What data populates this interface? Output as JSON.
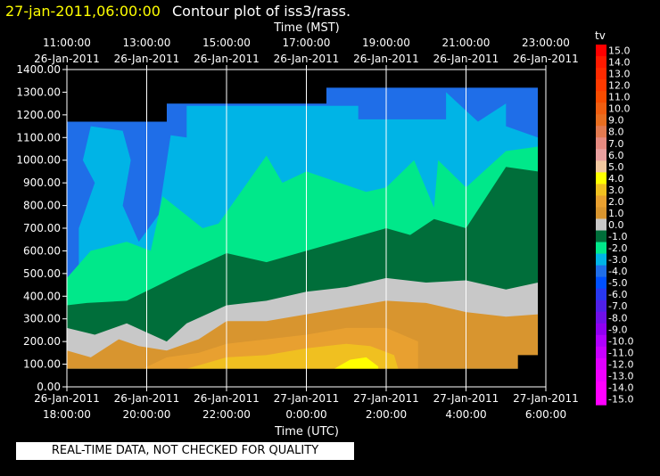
{
  "header": {
    "timestamp": "27-jan-2011,06:00:00",
    "title": "Contour plot of iss3/rass."
  },
  "footer": {
    "notice": "REAL-TIME DATA, NOT CHECKED FOR QUALITY"
  },
  "colors": {
    "background": "#000000",
    "timestamp": "#ffff00",
    "text": "#ffffff",
    "grid": "#ffffff"
  },
  "chart_data": {
    "type": "heatmap",
    "title": "Contour plot of iss3/rass.",
    "xlabel_top": "Time (MST)",
    "xlabel": "Time (UTC)",
    "ylabel": "",
    "legend_title": "tv",
    "legend_position": "right",
    "grid": true,
    "xlim": [
      0,
      12
    ],
    "ylim": [
      0,
      1400
    ],
    "yticks": [
      0,
      100,
      200,
      300,
      400,
      500,
      600,
      700,
      800,
      900,
      1000,
      1100,
      1200,
      1300,
      1400
    ],
    "ytick_labels": [
      "0.00",
      "100.00",
      "200.00",
      "300.00",
      "400.00",
      "500.00",
      "600.00",
      "700.00",
      "800.00",
      "900.00",
      "1000.00",
      "1100.00",
      "1200.00",
      "1300.00",
      "1400.00"
    ],
    "xticks_bottom": [
      {
        "x": 0,
        "date": "26-Jan-2011",
        "time": "18:00:00"
      },
      {
        "x": 2,
        "date": "26-Jan-2011",
        "time": "20:00:00"
      },
      {
        "x": 4,
        "date": "26-Jan-2011",
        "time": "22:00:00"
      },
      {
        "x": 6,
        "date": "27-Jan-2011",
        "time": "0:00:00"
      },
      {
        "x": 8,
        "date": "27-Jan-2011",
        "time": "2:00:00"
      },
      {
        "x": 10,
        "date": "27-Jan-2011",
        "time": "4:00:00"
      },
      {
        "x": 12,
        "date": "27-Jan-2011",
        "time": "6:00:00"
      }
    ],
    "xticks_top": [
      {
        "x": 0,
        "time": "11:00:00",
        "date": "26-Jan-2011"
      },
      {
        "x": 2,
        "time": "13:00:00",
        "date": "26-Jan-2011"
      },
      {
        "x": 4,
        "time": "15:00:00",
        "date": "26-Jan-2011"
      },
      {
        "x": 6,
        "time": "17:00:00",
        "date": "26-Jan-2011"
      },
      {
        "x": 8,
        "time": "19:00:00",
        "date": "26-Jan-2011"
      },
      {
        "x": 10,
        "time": "21:00:00",
        "date": "26-Jan-2011"
      },
      {
        "x": 12,
        "time": "23:00:00",
        "date": "26-Jan-2011"
      }
    ],
    "colorbar": [
      {
        "label": "15.0",
        "color": "#ff0000"
      },
      {
        "label": "14.0",
        "color": "#ff1a00"
      },
      {
        "label": "13.0",
        "color": "#ff2a00"
      },
      {
        "label": "12.0",
        "color": "#ff3a00"
      },
      {
        "label": "11.0",
        "color": "#f84c00"
      },
      {
        "label": "10.0",
        "color": "#f05e10"
      },
      {
        "label": "9.0",
        "color": "#e86e20"
      },
      {
        "label": "8.0",
        "color": "#e27a50"
      },
      {
        "label": "7.0",
        "color": "#e68a80"
      },
      {
        "label": "6.0",
        "color": "#eaa0a0"
      },
      {
        "label": "5.0",
        "color": "#f2c8a0"
      },
      {
        "label": "4.0",
        "color": "#ffff00"
      },
      {
        "label": "3.0",
        "color": "#f0c020"
      },
      {
        "label": "2.0",
        "color": "#e8a030"
      },
      {
        "label": "1.0",
        "color": "#d8952f"
      },
      {
        "label": "0.0",
        "color": "#c8c8c8"
      },
      {
        "label": "-1.0",
        "color": "#006e3a"
      },
      {
        "label": "-2.0",
        "color": "#00e88a"
      },
      {
        "label": "-3.0",
        "color": "#00b4e6"
      },
      {
        "label": "-4.0",
        "color": "#1f6ee8"
      },
      {
        "label": "-5.0",
        "color": "#0050ff"
      },
      {
        "label": "-6.0",
        "color": "#2838f0"
      },
      {
        "label": "-7.0",
        "color": "#5020e8"
      },
      {
        "label": "-8.0",
        "color": "#7010e8"
      },
      {
        "label": "-9.0",
        "color": "#9000f0"
      },
      {
        "label": "-10.0",
        "color": "#b000ff"
      },
      {
        "label": "-11.0",
        "color": "#c800ff"
      },
      {
        "label": "-12.0",
        "color": "#e000ff"
      },
      {
        "label": "-13.0",
        "color": "#f000ff"
      },
      {
        "label": "-14.0",
        "color": "#ff00ff"
      },
      {
        "label": "-15.0",
        "color": "#ff00ff"
      }
    ],
    "regions": [
      {
        "name": "band-blue",
        "color": "#1f6ee8",
        "points": [
          [
            0,
            1170
          ],
          [
            2.5,
            1170
          ],
          [
            2.5,
            1250
          ],
          [
            6.5,
            1250
          ],
          [
            6.5,
            1320
          ],
          [
            11.8,
            1320
          ],
          [
            11.8,
            120
          ],
          [
            0,
            120
          ]
        ]
      },
      {
        "name": "band-light-blue",
        "color": "#00b4e6",
        "points": [
          [
            0.3,
            80
          ],
          [
            0.3,
            480
          ],
          [
            0.3,
            700
          ],
          [
            0.7,
            900
          ],
          [
            0.4,
            1000
          ],
          [
            0.6,
            1150
          ],
          [
            1.4,
            1130
          ],
          [
            1.6,
            1000
          ],
          [
            1.4,
            800
          ],
          [
            1.8,
            640
          ],
          [
            2.3,
            760
          ],
          [
            2.6,
            1110
          ],
          [
            3.0,
            1100
          ],
          [
            3.0,
            1240
          ],
          [
            7.3,
            1240
          ],
          [
            7.3,
            1180
          ],
          [
            9.5,
            1180
          ],
          [
            9.5,
            1300
          ],
          [
            10.3,
            1170
          ],
          [
            11.0,
            1250
          ],
          [
            11.0,
            1150
          ],
          [
            11.8,
            1100
          ],
          [
            11.8,
            80
          ]
        ]
      },
      {
        "name": "band-teal",
        "color": "#00e88a",
        "points": [
          [
            0,
            80
          ],
          [
            0,
            480
          ],
          [
            0.6,
            600
          ],
          [
            1.5,
            640
          ],
          [
            2.1,
            600
          ],
          [
            2.4,
            840
          ],
          [
            3.4,
            700
          ],
          [
            3.8,
            720
          ],
          [
            5.0,
            1020
          ],
          [
            5.4,
            900
          ],
          [
            6.0,
            950
          ],
          [
            7.5,
            860
          ],
          [
            8.0,
            880
          ],
          [
            8.7,
            1000
          ],
          [
            9.2,
            790
          ],
          [
            9.3,
            1000
          ],
          [
            10.0,
            880
          ],
          [
            11.0,
            1040
          ],
          [
            11.8,
            1060
          ],
          [
            11.8,
            80
          ]
        ]
      },
      {
        "name": "band-dark-green",
        "color": "#006e3a",
        "points": [
          [
            0,
            80
          ],
          [
            0,
            360
          ],
          [
            0.5,
            370
          ],
          [
            1.5,
            380
          ],
          [
            2.2,
            440
          ],
          [
            3.0,
            510
          ],
          [
            4.0,
            590
          ],
          [
            5.0,
            550
          ],
          [
            6.0,
            600
          ],
          [
            7.0,
            650
          ],
          [
            8.0,
            700
          ],
          [
            8.6,
            670
          ],
          [
            9.2,
            740
          ],
          [
            10.0,
            700
          ],
          [
            11.0,
            970
          ],
          [
            11.8,
            950
          ],
          [
            11.8,
            80
          ]
        ]
      },
      {
        "name": "band-gray",
        "color": "#c8c8c8",
        "points": [
          [
            0,
            80
          ],
          [
            0,
            260
          ],
          [
            0.7,
            230
          ],
          [
            1.5,
            280
          ],
          [
            2.5,
            200
          ],
          [
            3.0,
            280
          ],
          [
            4.0,
            360
          ],
          [
            5.0,
            380
          ],
          [
            6.0,
            420
          ],
          [
            7.0,
            440
          ],
          [
            8.0,
            480
          ],
          [
            9.0,
            460
          ],
          [
            10.0,
            470
          ],
          [
            11.0,
            430
          ],
          [
            11.8,
            460
          ],
          [
            11.8,
            80
          ]
        ]
      },
      {
        "name": "band-orange",
        "color": "#d8952f",
        "points": [
          [
            0,
            80
          ],
          [
            0,
            160
          ],
          [
            0.6,
            130
          ],
          [
            1.3,
            210
          ],
          [
            1.8,
            180
          ],
          [
            2.5,
            160
          ],
          [
            3.3,
            210
          ],
          [
            4.0,
            290
          ],
          [
            5.0,
            290
          ],
          [
            6.0,
            320
          ],
          [
            7.0,
            350
          ],
          [
            8.0,
            380
          ],
          [
            9.0,
            370
          ],
          [
            10.0,
            330
          ],
          [
            11.0,
            310
          ],
          [
            11.8,
            320
          ],
          [
            11.8,
            80
          ]
        ]
      },
      {
        "name": "band-gold",
        "color": "#e8a030",
        "points": [
          [
            1.9,
            80
          ],
          [
            2.5,
            130
          ],
          [
            3.3,
            150
          ],
          [
            4.0,
            190
          ],
          [
            5.0,
            210
          ],
          [
            6.0,
            230
          ],
          [
            7.0,
            260
          ],
          [
            8.0,
            260
          ],
          [
            8.8,
            200
          ],
          [
            8.8,
            80
          ]
        ]
      },
      {
        "name": "band-bright-gold",
        "color": "#f0c020",
        "points": [
          [
            3.0,
            80
          ],
          [
            4.0,
            130
          ],
          [
            5.0,
            140
          ],
          [
            6.0,
            170
          ],
          [
            7.0,
            190
          ],
          [
            7.6,
            180
          ],
          [
            8.2,
            140
          ],
          [
            8.3,
            80
          ]
        ]
      },
      {
        "name": "band-yellow",
        "color": "#ffff00",
        "points": [
          [
            6.7,
            80
          ],
          [
            7.1,
            120
          ],
          [
            7.5,
            130
          ],
          [
            7.8,
            90
          ],
          [
            7.8,
            80
          ]
        ]
      }
    ],
    "masks": [
      {
        "name": "no-data-top-left",
        "points": [
          [
            0,
            1400
          ],
          [
            2.5,
            1400
          ],
          [
            2.5,
            1170
          ],
          [
            0,
            1170
          ]
        ]
      },
      {
        "name": "no-data-top-mid",
        "points": [
          [
            2.5,
            1400
          ],
          [
            6.5,
            1400
          ],
          [
            6.5,
            1250
          ],
          [
            2.5,
            1250
          ]
        ]
      },
      {
        "name": "no-data-top-right",
        "points": [
          [
            11.8,
            1400
          ],
          [
            12,
            1400
          ],
          [
            12,
            80
          ],
          [
            11.8,
            80
          ],
          [
            11.8,
            1320
          ]
        ]
      },
      {
        "name": "no-data-top",
        "points": [
          [
            6.5,
            1400
          ],
          [
            11.8,
            1400
          ],
          [
            11.8,
            1320
          ],
          [
            6.5,
            1320
          ]
        ]
      },
      {
        "name": "no-data-bottom",
        "points": [
          [
            0,
            0
          ],
          [
            12,
            0
          ],
          [
            12,
            80
          ],
          [
            0,
            80
          ]
        ]
      },
      {
        "name": "no-data-bottom-right",
        "points": [
          [
            11.3,
            0
          ],
          [
            12,
            0
          ],
          [
            12,
            140
          ],
          [
            11.3,
            140
          ]
        ]
      },
      {
        "name": "no-data-right-upper",
        "points": [
          [
            11.8,
            1400
          ],
          [
            12,
            1400
          ],
          [
            12,
            1150
          ],
          [
            11.8,
            1150
          ]
        ]
      }
    ]
  }
}
